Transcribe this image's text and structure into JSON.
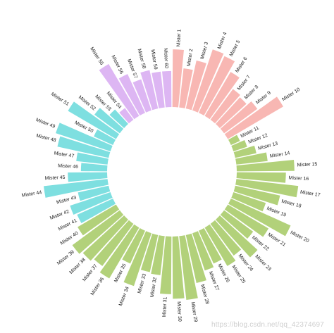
{
  "chart_data": {
    "type": "circular-bar",
    "title": "",
    "categories": [
      "Mister 1",
      "Mister 2",
      "Mister 3",
      "Mister 4",
      "Mister 5",
      "Mister 6",
      "Mister 7",
      "Mister 8",
      "Mister 9",
      "Mister 10",
      "Mister 11",
      "Mister 12",
      "Mister 13",
      "Mister 14",
      "Mister 15",
      "Mister 16",
      "Mister 17",
      "Mister 18",
      "Mister 19",
      "Mister 20",
      "Mister 21",
      "Mister 22",
      "Mister 23",
      "Mister 24",
      "Mister 25",
      "Mister 26",
      "Mister 27",
      "Mister 28",
      "Mister 29",
      "Mister 30",
      "Mister 31",
      "Mister 32",
      "Mister 33",
      "Mister 34",
      "Mister 35",
      "Mister 36",
      "Mister 37",
      "Mister 38",
      "Mister 39",
      "Mister 40",
      "Mister 41",
      "Mister 42",
      "Mister 43",
      "Mister 44",
      "Mister 45",
      "Mister 46",
      "Mister 47",
      "Mister 48",
      "Mister 49",
      "Mister 50",
      "Mister 51",
      "Mister 52",
      "Mister 53",
      "Mister 54",
      "Mister 55",
      "Mister 56",
      "Mister 57",
      "Mister 58",
      "Mister 59",
      "Mister 60"
    ],
    "values": [
      88,
      60,
      75,
      98,
      95,
      78,
      58,
      55,
      63,
      98,
      15,
      22,
      33,
      48,
      88,
      75,
      95,
      70,
      52,
      100,
      72,
      55,
      78,
      60,
      68,
      55,
      60,
      75,
      98,
      95,
      88,
      60,
      58,
      85,
      55,
      90,
      80,
      85,
      90,
      68,
      60,
      65,
      48,
      98,
      60,
      40,
      48,
      80,
      88,
      32,
      85,
      48,
      30,
      22,
      92,
      65,
      50,
      60,
      55,
      55
    ],
    "groups": [
      {
        "color": "#f8b7b3",
        "from": 1,
        "to": 10
      },
      {
        "color": "#b2d17a",
        "from": 11,
        "to": 40
      },
      {
        "color": "#7edfe0",
        "from": 41,
        "to": 53
      },
      {
        "color": "#ddb6f3",
        "from": 54,
        "to": 60
      }
    ],
    "ylim": [
      0,
      100
    ],
    "grid": false,
    "legend": "none"
  },
  "watermark": "https://blog.csdn.net/qq_42374697"
}
